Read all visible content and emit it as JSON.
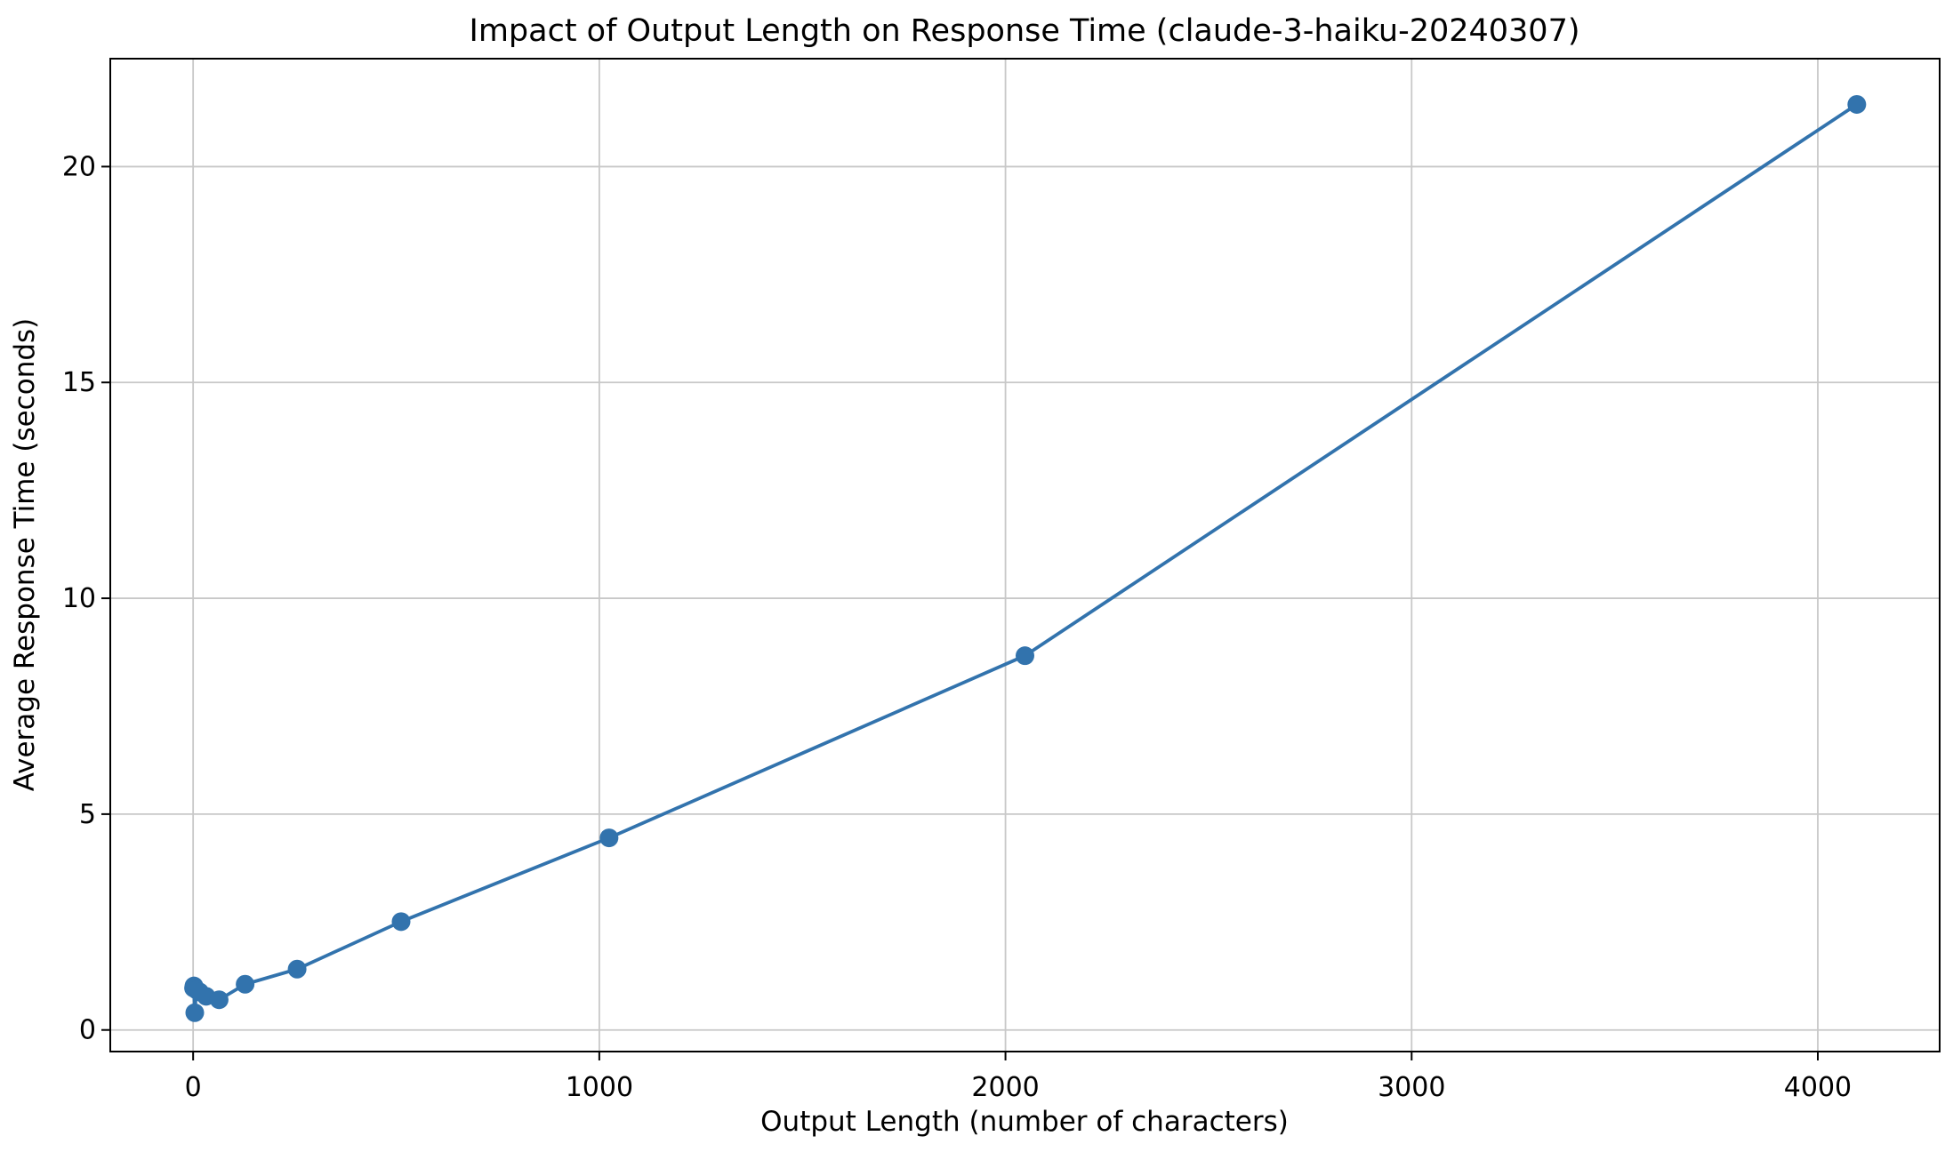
{
  "figure": {
    "background": "#ffffff"
  },
  "chart_data": {
    "type": "line",
    "title": "Impact of Output Length on Response Time (claude-3-haiku-20240307)",
    "xlabel": "Output Length (number of characters)",
    "ylabel": "Average Response Time (seconds)",
    "series": [
      {
        "name": "average-response-time",
        "x": [
          1,
          2,
          4,
          8,
          16,
          32,
          64,
          128,
          256,
          512,
          1024,
          2048,
          4096
        ],
        "y": [
          0.97,
          1.02,
          0.4,
          0.93,
          0.88,
          0.78,
          0.7,
          1.06,
          1.41,
          2.51,
          4.45,
          8.67,
          21.44
        ]
      }
    ],
    "xticks": [
      0,
      1000,
      2000,
      3000,
      4000
    ],
    "yticks": [
      0,
      5,
      10,
      15,
      20
    ],
    "xtick_labels": [
      "0",
      "1000",
      "2000",
      "3000",
      "4000"
    ],
    "ytick_labels": [
      "0",
      "5",
      "10",
      "15",
      "20"
    ],
    "xlim": [
      -204,
      4300
    ],
    "ylim": [
      -0.5,
      22.5
    ],
    "grid": true,
    "legend": "none",
    "line_color": "#3273ad",
    "marker_color": "#3273ad",
    "marker_shape": "circle",
    "grid_color": "#c8c8c8",
    "spine_color": "#000000",
    "background_color": "#ffffff"
  }
}
